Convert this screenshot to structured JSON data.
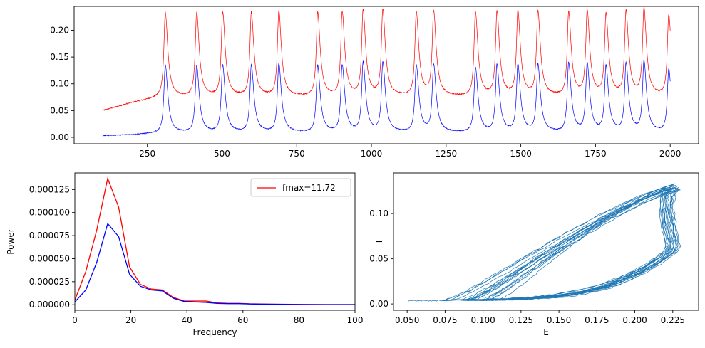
{
  "chart_data": [
    {
      "type": "line",
      "panel": "top",
      "xlim": [
        5,
        2095
      ],
      "ylim": [
        -0.012,
        0.2445
      ],
      "xticks": [
        250,
        500,
        750,
        1000,
        1250,
        1500,
        1750,
        2000
      ],
      "yticks": [
        0.0,
        0.05,
        0.1,
        0.15,
        0.2
      ],
      "xtick_labels": [
        "250",
        "500",
        "750",
        "1000",
        "1250",
        "1500",
        "1750",
        "2000"
      ],
      "ytick_labels": [
        "0.00",
        "0.05",
        "0.10",
        "0.15",
        "0.20"
      ],
      "x_range": [
        100,
        2000
      ],
      "peak_times": [
        310,
        415,
        502,
        598,
        690,
        820,
        902,
        972,
        1038,
        1150,
        1208,
        1348,
        1420,
        1490,
        1557,
        1660,
        1722,
        1785,
        1852,
        1912,
        1995
      ],
      "series": [
        {
          "color": "#ff0000",
          "baseline_start": 0.05,
          "baseline_mid": 0.065,
          "baseline_level": 0.075,
          "peak_values": [
            0.233,
            0.232,
            0.232,
            0.232,
            0.234,
            0.232,
            0.232,
            0.235,
            0.235,
            0.232,
            0.232,
            0.232,
            0.232,
            0.232,
            0.232,
            0.232,
            0.232,
            0.226,
            0.232,
            0.236,
            0.226
          ]
        },
        {
          "color": "#0000ff",
          "baseline_start": 0.003,
          "baseline_mid": 0.005,
          "baseline_level": 0.008,
          "peak_values": [
            0.135,
            0.133,
            0.133,
            0.133,
            0.137,
            0.133,
            0.133,
            0.137,
            0.137,
            0.133,
            0.133,
            0.129,
            0.133,
            0.133,
            0.133,
            0.137,
            0.135,
            0.13,
            0.135,
            0.139,
            0.125
          ]
        }
      ]
    },
    {
      "type": "line",
      "panel": "bottom-left",
      "xlabel": "Frequency",
      "ylabel": "Power",
      "xlim": [
        0,
        100
      ],
      "ylim": [
        -6e-06,
        0.000143
      ],
      "xticks": [
        0,
        20,
        40,
        60,
        80,
        100
      ],
      "yticks": [
        0.0,
        2.5e-05,
        5e-05,
        7.5e-05,
        0.0001,
        0.000125
      ],
      "xtick_labels": [
        "0",
        "20",
        "40",
        "60",
        "80",
        "100"
      ],
      "ytick_labels": [
        "0.000000",
        "0.000025",
        "0.000050",
        "0.000075",
        "0.000100",
        "0.000125"
      ],
      "x": [
        0,
        3.906,
        7.813,
        11.719,
        15.625,
        19.531,
        23.438,
        27.344,
        31.25,
        35.156,
        39.063,
        42.969,
        46.875,
        50.781,
        54.688,
        58.594,
        62.5,
        66.406,
        70.313,
        74.219,
        78.125,
        82.031,
        85.938,
        89.844,
        93.75,
        97.656,
        101.563
      ],
      "legend": {
        "loc": "upper right",
        "entries": [
          {
            "label": "fmax=11.72",
            "color": "#ff0000"
          }
        ]
      },
      "series": [
        {
          "color": "#ff0000",
          "values": [
            5e-06,
            3.6e-05,
            8.1e-05,
            0.000137,
            0.000106,
            4.1e-05,
            2.2e-05,
            1.7e-05,
            1.6e-05,
            8e-06,
            4e-06,
            4e-06,
            4e-06,
            2e-06,
            1.5e-06,
            1.5e-06,
            1e-06,
            8e-07,
            6e-07,
            5e-07,
            4e-07,
            3e-07,
            3e-07,
            2e-07,
            2e-07,
            2e-07,
            2e-07
          ]
        },
        {
          "color": "#0000ff",
          "values": [
            3e-06,
            1.6e-05,
            4.6e-05,
            8.8e-05,
            7.4e-05,
            3.3e-05,
            2e-05,
            1.6e-05,
            1.5e-05,
            7e-06,
            3.5e-06,
            3e-06,
            2.5e-06,
            1.5e-06,
            1.2e-06,
            1.2e-06,
            8e-07,
            6e-07,
            5e-07,
            4e-07,
            3e-07,
            3e-07,
            2e-07,
            2e-07,
            2e-07,
            2e-07,
            2e-07
          ]
        }
      ]
    },
    {
      "type": "line",
      "panel": "bottom-right",
      "xlabel": "E",
      "ylabel": "I",
      "xlim": [
        0.041,
        0.242
      ],
      "ylim": [
        -0.007,
        0.145
      ],
      "xticks": [
        0.05,
        0.075,
        0.1,
        0.125,
        0.15,
        0.175,
        0.2,
        0.225
      ],
      "yticks": [
        0.0,
        0.05,
        0.1
      ],
      "xtick_labels": [
        "0.050",
        "0.075",
        "0.100",
        "0.125",
        "0.150",
        "0.175",
        "0.200",
        "0.225"
      ],
      "ytick_labels": [
        "0.00",
        "0.05",
        "0.10"
      ],
      "series": [
        {
          "color": "#1f77b4",
          "start": [
            0.05,
            0.003
          ],
          "loop_E_range": [
            0.075,
            0.234
          ],
          "loop_I_range": [
            0.003,
            0.139
          ]
        }
      ]
    }
  ]
}
